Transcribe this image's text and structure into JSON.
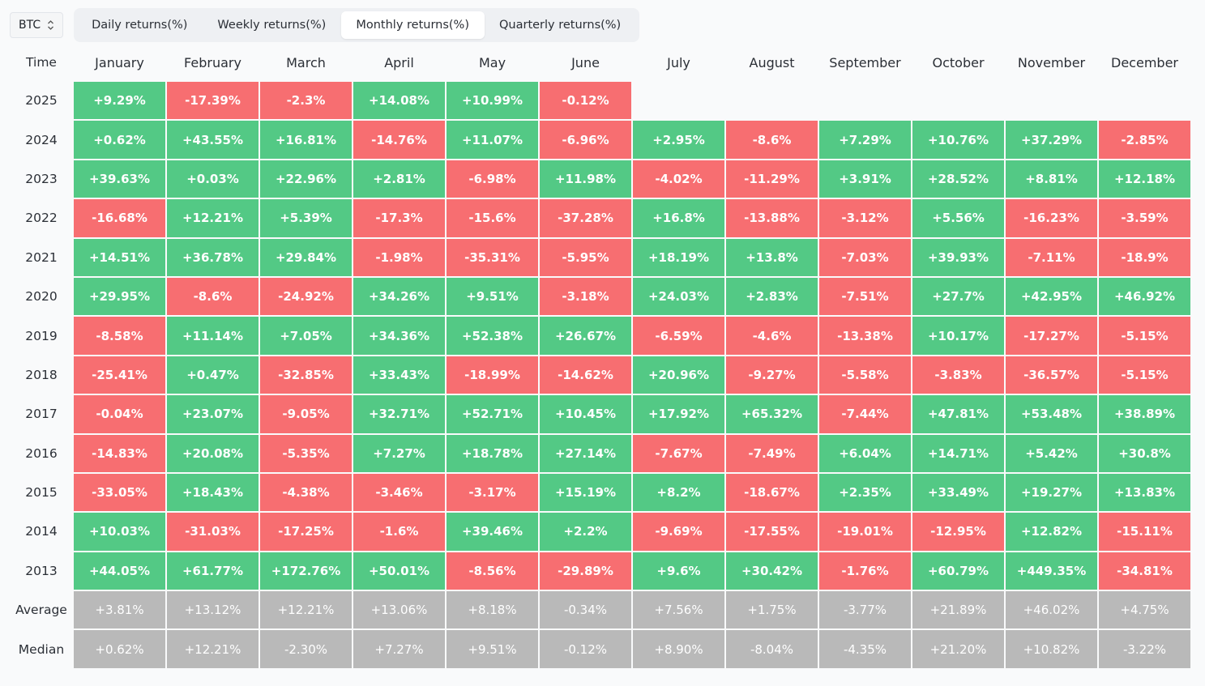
{
  "asset_select": {
    "value": "BTC"
  },
  "tabs": [
    {
      "label": "Daily returns(%)",
      "active": false
    },
    {
      "label": "Weekly returns(%)",
      "active": false
    },
    {
      "label": "Monthly returns(%)",
      "active": true
    },
    {
      "label": "Quarterly returns(%)",
      "active": false
    }
  ],
  "colors": {
    "positive": "#53c985",
    "negative": "#f76e71",
    "stat": "#b9b9b9"
  },
  "table": {
    "corner_label": "Time",
    "months": [
      "January",
      "February",
      "March",
      "April",
      "May",
      "June",
      "July",
      "August",
      "September",
      "October",
      "November",
      "December"
    ],
    "rows": [
      {
        "label": "2025",
        "values": [
          "+9.29%",
          "-17.39%",
          "-2.3%",
          "+14.08%",
          "+10.99%",
          "-0.12%",
          "",
          "",
          "",
          "",
          "",
          ""
        ]
      },
      {
        "label": "2024",
        "values": [
          "+0.62%",
          "+43.55%",
          "+16.81%",
          "-14.76%",
          "+11.07%",
          "-6.96%",
          "+2.95%",
          "-8.6%",
          "+7.29%",
          "+10.76%",
          "+37.29%",
          "-2.85%"
        ]
      },
      {
        "label": "2023",
        "values": [
          "+39.63%",
          "+0.03%",
          "+22.96%",
          "+2.81%",
          "-6.98%",
          "+11.98%",
          "-4.02%",
          "-11.29%",
          "+3.91%",
          "+28.52%",
          "+8.81%",
          "+12.18%"
        ]
      },
      {
        "label": "2022",
        "values": [
          "-16.68%",
          "+12.21%",
          "+5.39%",
          "-17.3%",
          "-15.6%",
          "-37.28%",
          "+16.8%",
          "-13.88%",
          "-3.12%",
          "+5.56%",
          "-16.23%",
          "-3.59%"
        ]
      },
      {
        "label": "2021",
        "values": [
          "+14.51%",
          "+36.78%",
          "+29.84%",
          "-1.98%",
          "-35.31%",
          "-5.95%",
          "+18.19%",
          "+13.8%",
          "-7.03%",
          "+39.93%",
          "-7.11%",
          "-18.9%"
        ]
      },
      {
        "label": "2020",
        "values": [
          "+29.95%",
          "-8.6%",
          "-24.92%",
          "+34.26%",
          "+9.51%",
          "-3.18%",
          "+24.03%",
          "+2.83%",
          "-7.51%",
          "+27.7%",
          "+42.95%",
          "+46.92%"
        ]
      },
      {
        "label": "2019",
        "values": [
          "-8.58%",
          "+11.14%",
          "+7.05%",
          "+34.36%",
          "+52.38%",
          "+26.67%",
          "-6.59%",
          "-4.6%",
          "-13.38%",
          "+10.17%",
          "-17.27%",
          "-5.15%"
        ]
      },
      {
        "label": "2018",
        "values": [
          "-25.41%",
          "+0.47%",
          "-32.85%",
          "+33.43%",
          "-18.99%",
          "-14.62%",
          "+20.96%",
          "-9.27%",
          "-5.58%",
          "-3.83%",
          "-36.57%",
          "-5.15%"
        ]
      },
      {
        "label": "2017",
        "values": [
          "-0.04%",
          "+23.07%",
          "-9.05%",
          "+32.71%",
          "+52.71%",
          "+10.45%",
          "+17.92%",
          "+65.32%",
          "-7.44%",
          "+47.81%",
          "+53.48%",
          "+38.89%"
        ]
      },
      {
        "label": "2016",
        "values": [
          "-14.83%",
          "+20.08%",
          "-5.35%",
          "+7.27%",
          "+18.78%",
          "+27.14%",
          "-7.67%",
          "-7.49%",
          "+6.04%",
          "+14.71%",
          "+5.42%",
          "+30.8%"
        ]
      },
      {
        "label": "2015",
        "values": [
          "-33.05%",
          "+18.43%",
          "-4.38%",
          "-3.46%",
          "-3.17%",
          "+15.19%",
          "+8.2%",
          "-18.67%",
          "+2.35%",
          "+33.49%",
          "+19.27%",
          "+13.83%"
        ]
      },
      {
        "label": "2014",
        "values": [
          "+10.03%",
          "-31.03%",
          "-17.25%",
          "-1.6%",
          "+39.46%",
          "+2.2%",
          "-9.69%",
          "-17.55%",
          "-19.01%",
          "-12.95%",
          "+12.82%",
          "-15.11%"
        ]
      },
      {
        "label": "2013",
        "values": [
          "+44.05%",
          "+61.77%",
          "+172.76%",
          "+50.01%",
          "-8.56%",
          "-29.89%",
          "+9.6%",
          "+30.42%",
          "-1.76%",
          "+60.79%",
          "+449.35%",
          "-34.81%"
        ]
      }
    ],
    "stats": [
      {
        "label": "Average",
        "values": [
          "+3.81%",
          "+13.12%",
          "+12.21%",
          "+13.06%",
          "+8.18%",
          "-0.34%",
          "+7.56%",
          "+1.75%",
          "-3.77%",
          "+21.89%",
          "+46.02%",
          "+4.75%"
        ]
      },
      {
        "label": "Median",
        "values": [
          "+0.62%",
          "+12.21%",
          "-2.30%",
          "+7.27%",
          "+9.51%",
          "-0.12%",
          "+8.90%",
          "-8.04%",
          "-4.35%",
          "+21.20%",
          "+10.82%",
          "-3.22%"
        ]
      }
    ]
  }
}
